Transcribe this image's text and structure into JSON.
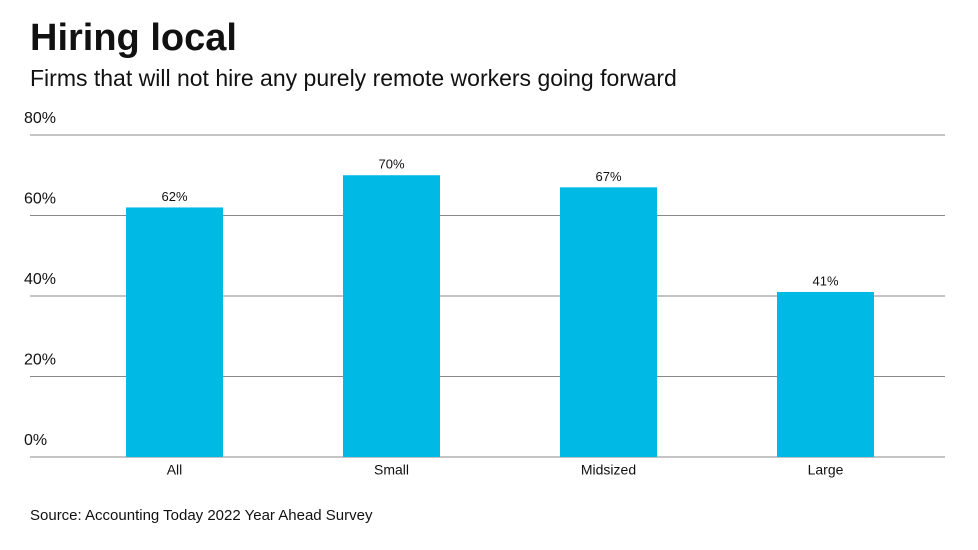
{
  "chart_data": {
    "type": "bar",
    "title": "Hiring local",
    "subtitle": "Firms that will not hire any purely remote workers going forward",
    "source": "Source: Accounting Today 2022 Year Ahead Survey",
    "categories": [
      "All",
      "Small",
      "Midsized",
      "Large"
    ],
    "values": [
      62,
      70,
      67,
      41
    ],
    "value_labels": [
      "62%",
      "70%",
      "67%",
      "41%"
    ],
    "color": "#00b9e4",
    "ylim": [
      0,
      80
    ],
    "yticks": [
      {
        "value": 0,
        "label": "0%"
      },
      {
        "value": 20,
        "label": "20%"
      },
      {
        "value": 40,
        "label": "40%"
      },
      {
        "value": 60,
        "label": "60%"
      },
      {
        "value": 80,
        "label": "80%"
      }
    ],
    "grid": true
  }
}
